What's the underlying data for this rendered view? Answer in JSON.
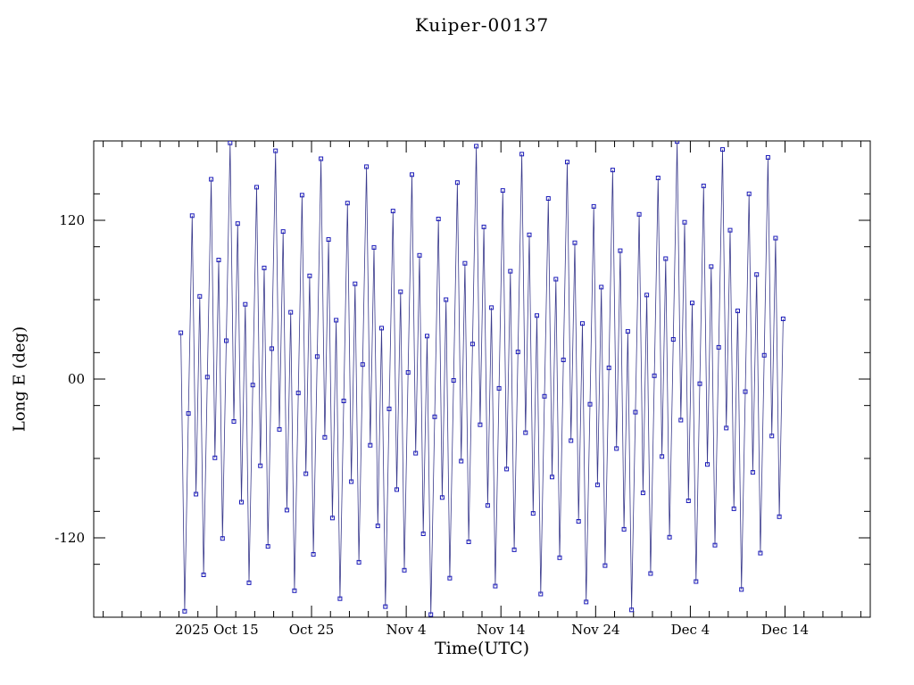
{
  "page": {
    "background": "#ffffff"
  },
  "chart_data": {
    "type": "line",
    "title": "Kuiper-00137",
    "xlabel": "Time(UTC)",
    "ylabel": "Long E (deg)",
    "legend": "none",
    "grid": false,
    "xlim_days": [
      0,
      82
    ],
    "ylim": [
      -180,
      180
    ],
    "x_ticks": [
      {
        "label": "2025 Oct 15",
        "day": 13
      },
      {
        "label": "Oct 25",
        "day": 23
      },
      {
        "label": "Nov 4",
        "day": 33
      },
      {
        "label": "Nov 14",
        "day": 43
      },
      {
        "label": "Nov 24",
        "day": 53
      },
      {
        "label": "Dec 4",
        "day": 63
      },
      {
        "label": "Dec 14",
        "day": 73
      }
    ],
    "x_minor_step_days": 2,
    "y_ticks": [
      {
        "label": "120",
        "value": 120
      },
      {
        "label": "00",
        "value": 0
      },
      {
        "label": "-120",
        "value": -120
      }
    ],
    "y_minor_step": 40,
    "axis_color": "#000000",
    "marker": {
      "shape": "open-square",
      "color": "#1a1ab8",
      "size": 4
    },
    "line": {
      "color": "#3a3a8c",
      "width": 0.8
    },
    "series": {
      "name": "east longitude",
      "t_start_day": 9.2,
      "t_step_days": 0.4,
      "longitudes_deg": [
        35,
        -175.5,
        -26,
        123.5,
        -87,
        62.5,
        -148,
        1.5,
        151,
        -59.5,
        90,
        -120.5,
        29,
        178.5,
        -32,
        117.5,
        -93,
        56.5,
        -154,
        -4.5,
        145,
        -65.5,
        84,
        -126.5,
        23,
        172.5,
        -38,
        111.5,
        -99,
        50.5,
        -160,
        -10.5,
        139,
        -71.5,
        78,
        -132.5,
        17,
        166.5,
        -44,
        105.5,
        -105,
        44.5,
        -166,
        -16.5,
        133,
        -77.5,
        72,
        -138.5,
        11,
        160.5,
        -50,
        99.5,
        -111,
        38.5,
        -172,
        -22.5,
        127,
        -83.5,
        66,
        -144.5,
        5,
        154.5,
        -56,
        93.5,
        -117,
        32.5,
        -178,
        -28.5,
        121,
        -89.5,
        60,
        -150.5,
        -1,
        148.5,
        -62,
        87.5,
        -123,
        26.5,
        176,
        -34.5,
        115,
        -95.5,
        54,
        -156.5,
        -7,
        142.5,
        -68,
        81.5,
        -129,
        20.5,
        170,
        -40.5,
        109,
        -101.5,
        48,
        -162.5,
        -13,
        136.5,
        -74,
        75.5,
        -135,
        14.5,
        164,
        -46.5,
        103,
        -107.5,
        42,
        -168.5,
        -19,
        130.5,
        -80,
        69.5,
        -141,
        8.5,
        158,
        -52.5,
        97,
        -113.5,
        36,
        -174.5,
        -25,
        124.5,
        -86,
        63.5,
        -147,
        2.5,
        152,
        -58.5,
        91,
        -119.5,
        30,
        179.5,
        -31,
        118.5,
        -92,
        57.5,
        -153,
        -3.5,
        146,
        -64.5,
        85,
        -125.5,
        24,
        173.5,
        -37,
        112.5,
        -98,
        51.5,
        -159,
        -9.5,
        140,
        -70.5,
        79,
        -131.5,
        18,
        167.5,
        -43,
        106.5,
        -104,
        45.5
      ]
    }
  }
}
